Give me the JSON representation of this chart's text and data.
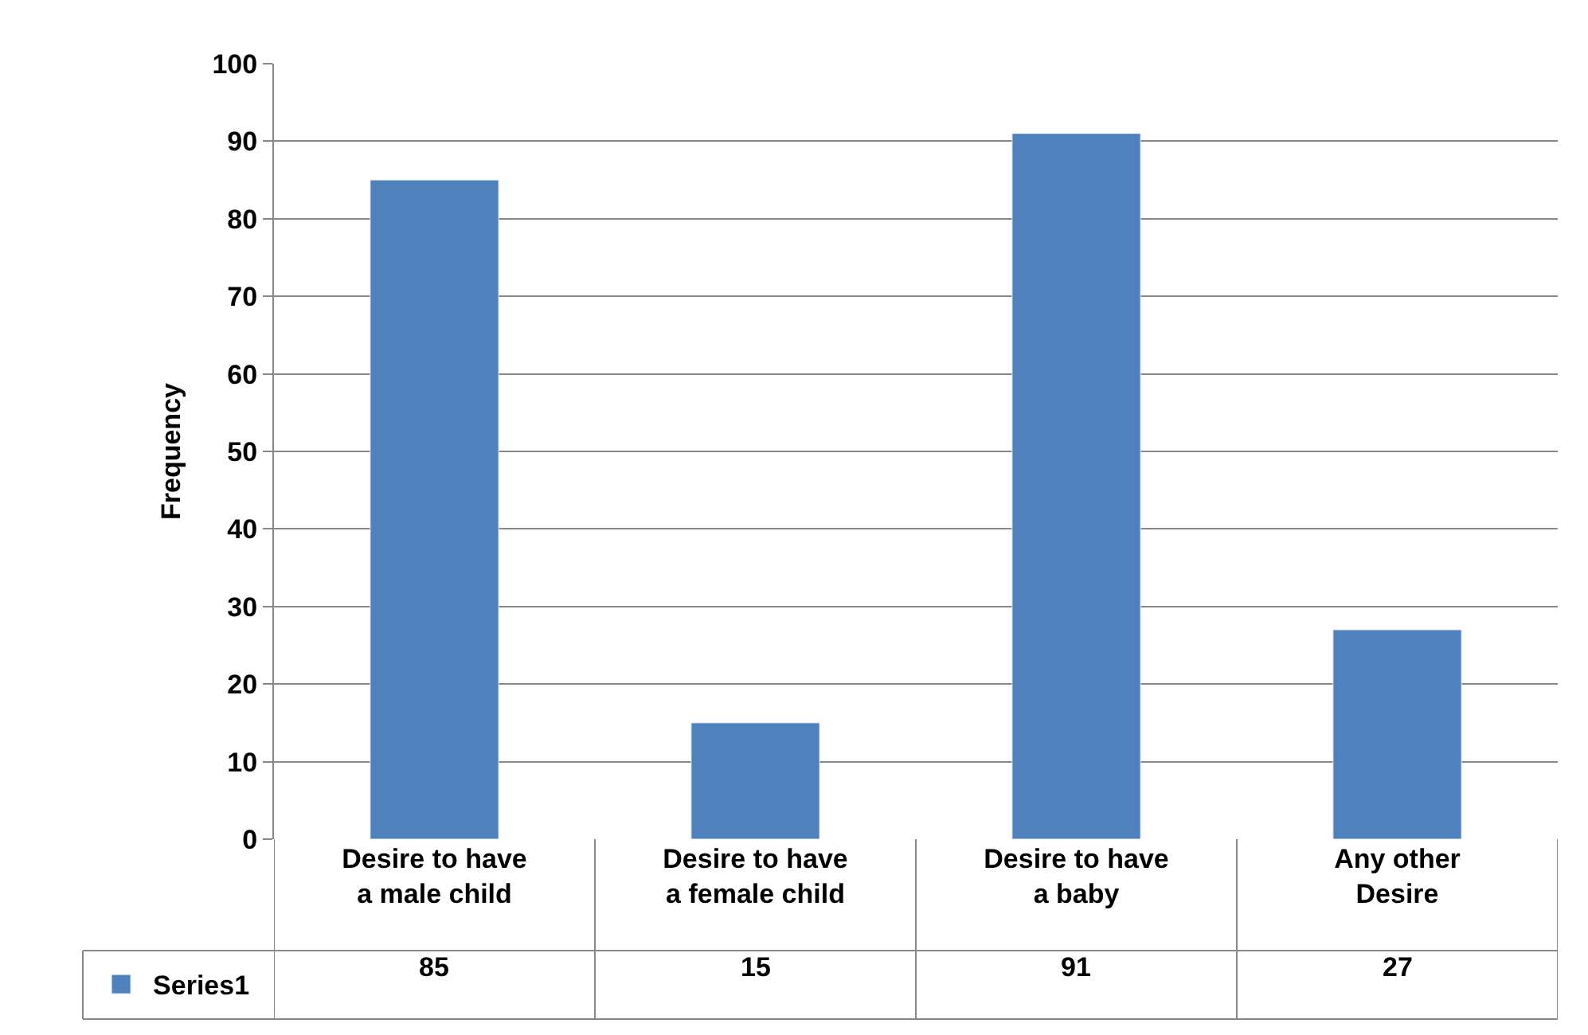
{
  "chart_data": {
    "type": "bar",
    "ylabel": "Frequency",
    "categories": [
      "Desire to have a male child",
      "Desire to have a female child",
      "Desire to have a baby",
      "Any other Desire"
    ],
    "series": [
      {
        "name": "Series1",
        "color": "#4f81bd",
        "values": [
          85,
          15,
          91,
          27
        ]
      }
    ],
    "ylim": [
      0,
      100
    ],
    "yticks": [
      0,
      10,
      20,
      30,
      40,
      50,
      60,
      70,
      80,
      90,
      100
    ],
    "grid": "y",
    "data_labels": true,
    "legend": "bottom left"
  }
}
